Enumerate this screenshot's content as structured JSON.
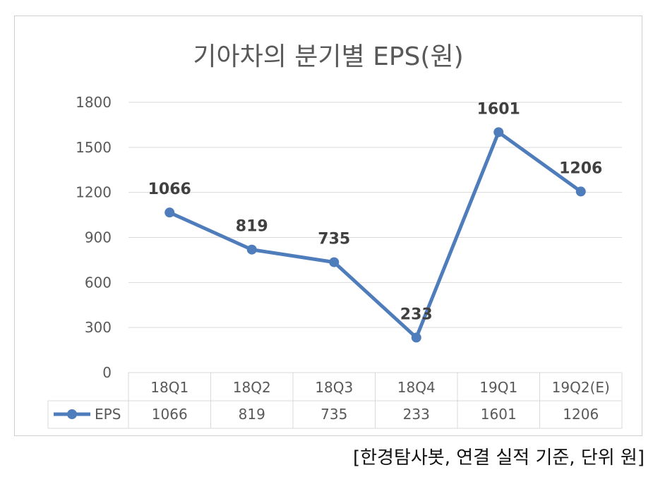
{
  "chart_data": {
    "type": "line",
    "title": "기아차의 분기별 EPS(원)",
    "categories": [
      "18Q1",
      "18Q2",
      "18Q3",
      "18Q4",
      "19Q1",
      "19Q2(E)"
    ],
    "series": [
      {
        "name": "EPS",
        "values": [
          1066,
          819,
          735,
          233,
          1601,
          1206
        ]
      }
    ],
    "ylim": [
      0,
      1800
    ],
    "yticks": [
      0,
      300,
      600,
      900,
      1200,
      1500,
      1800
    ],
    "grid": true,
    "data_table": true,
    "colors": {
      "series": "#4f7dbc",
      "grid": "#d9d9d9",
      "text": "#595959",
      "label": "#404040"
    }
  },
  "footer_note": "[한경탐사봇, 연결 실적 기준, 단위 원]"
}
